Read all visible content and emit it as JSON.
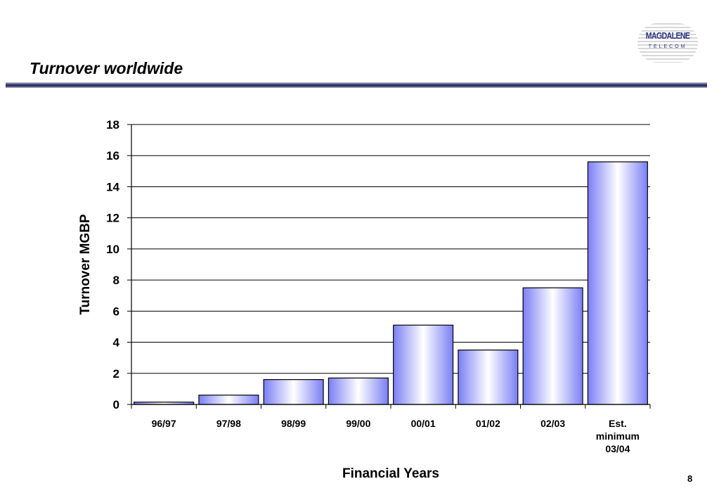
{
  "slide": {
    "title": "Turnover worldwide",
    "page_number": "8",
    "logo": {
      "name": "MAGDALENE",
      "sub": "TELECOM"
    }
  },
  "colors": {
    "bar_edge": "#7b7ff5",
    "bar_center": "#ffffff",
    "title_rule": "#1e2150",
    "logo": "#2c3483"
  },
  "chart_data": {
    "type": "bar",
    "categories": [
      [
        "96/97"
      ],
      [
        "97/98"
      ],
      [
        "98/99"
      ],
      [
        "99/00"
      ],
      [
        "00/01"
      ],
      [
        "01/02"
      ],
      [
        "02/03"
      ],
      [
        "Est.",
        "minimum",
        "03/04"
      ]
    ],
    "values": [
      0.15,
      0.6,
      1.6,
      1.7,
      5.1,
      3.5,
      7.5,
      15.6
    ],
    "title": "",
    "xlabel": "Financial Years",
    "ylabel": "Turnover MGBP",
    "ylim": [
      0,
      18
    ],
    "yticks": [
      0,
      2,
      4,
      6,
      8,
      10,
      12,
      14,
      16,
      18
    ],
    "grid": "horizontal",
    "legend": "none"
  }
}
